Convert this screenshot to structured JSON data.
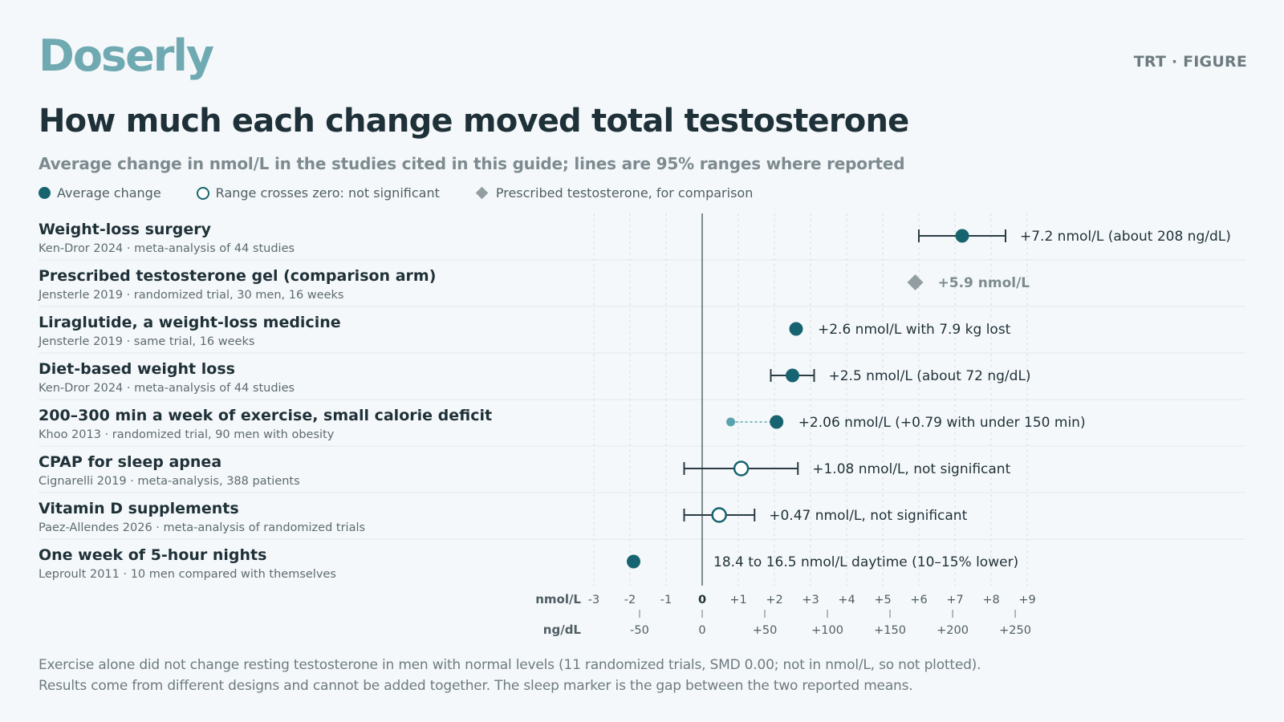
{
  "brand": "Doserly",
  "tag": "TRT · FIGURE",
  "title": "How much each change moved total testosterone",
  "subtitle": "Average change in nmol/L in the studies cited in this guide; lines are 95% ranges where reported",
  "legend": {
    "average": "Average change",
    "open": "Range crosses zero: not significant",
    "diamond": "Prescribed testosterone, for comparison"
  },
  "colors": {
    "primary": "#176470",
    "primary_light": "#5aa3ac",
    "comparison": "#929ea2",
    "axis": "#4f5e63",
    "grid": "#d6dde0"
  },
  "footnote": {
    "line1": "Exercise alone did not change resting testosterone in men with normal levels (11 randomized trials, SMD 0.00; not in nmol/L, so not plotted).",
    "line2": "Results come from different designs and cannot be added together. The sleep marker is the gap between the two reported means."
  },
  "chart_data": {
    "type": "forest",
    "x_unit_primary": "nmol/L",
    "x_unit_secondary": "ng/dL",
    "xlim": [
      -3,
      9
    ],
    "x_ticks": [
      "-3",
      "-2",
      "-1",
      "0",
      "+1",
      "+2",
      "+3",
      "+4",
      "+5",
      "+6",
      "+7",
      "+8",
      "+9"
    ],
    "x_tick_values": [
      -3,
      -2,
      -1,
      0,
      1,
      2,
      3,
      4,
      5,
      6,
      7,
      8,
      9
    ],
    "secondary_ticks": [
      "-50",
      "0",
      "+50",
      "+100",
      "+150",
      "+200",
      "+250"
    ],
    "secondary_tick_values": [
      -50,
      0,
      50,
      100,
      150,
      200,
      250
    ],
    "ngdl_per_nmol": 28.84,
    "rows": [
      {
        "label": "Weight-loss surgery",
        "source": "Ken-Dror 2024 · meta-analysis of 44 studies",
        "marker": "filled",
        "value": 7.2,
        "ci": [
          6.0,
          8.4
        ],
        "annotation": "+7.2 nmol/L (about 208 ng/dL)"
      },
      {
        "label": "Prescribed testosterone gel (comparison arm)",
        "source": "Jensterle 2019 · randomized trial, 30 men, 16 weeks",
        "marker": "diamond",
        "value": 5.9,
        "annotation": "+5.9 nmol/L"
      },
      {
        "label": "Liraglutide, a weight-loss medicine",
        "source": "Jensterle 2019 · same trial, 16 weeks",
        "marker": "filled",
        "value": 2.6,
        "annotation": "+2.6 nmol/L with 7.9 kg lost"
      },
      {
        "label": "Diet-based weight loss",
        "source": "Ken-Dror 2024 · meta-analysis of 44 studies",
        "marker": "filled",
        "value": 2.5,
        "ci": [
          1.9,
          3.1
        ],
        "annotation": "+2.5 nmol/L (about 72 ng/dL)"
      },
      {
        "label": "200–300 min a week of exercise, small calorie deficit",
        "source": "Khoo 2013 · randomized trial, 90 men with obesity",
        "marker": "filled",
        "value": 2.06,
        "secondary_value": 0.79,
        "annotation": "+2.06 nmol/L (+0.79 with under 150 min)"
      },
      {
        "label": "CPAP for sleep apnea",
        "source": "Cignarelli 2019 · meta-analysis, 388 patients",
        "marker": "open",
        "value": 1.08,
        "ci": [
          -0.5,
          2.65
        ],
        "annotation": "+1.08 nmol/L, not significant"
      },
      {
        "label": "Vitamin D supplements",
        "source": "Paez-Allendes 2026 · meta-analysis of randomized trials",
        "marker": "open",
        "value": 0.47,
        "ci": [
          -0.5,
          1.45
        ],
        "annotation": "+0.47 nmol/L, not significant"
      },
      {
        "label": "One week of 5-hour nights",
        "source": "Leproult 2011 · 10 men compared with themselves",
        "marker": "filled",
        "value": -1.9,
        "annotation": "18.4 to 16.5 nmol/L daytime (10–15% lower)",
        "annotation_at_zero": true
      }
    ]
  }
}
